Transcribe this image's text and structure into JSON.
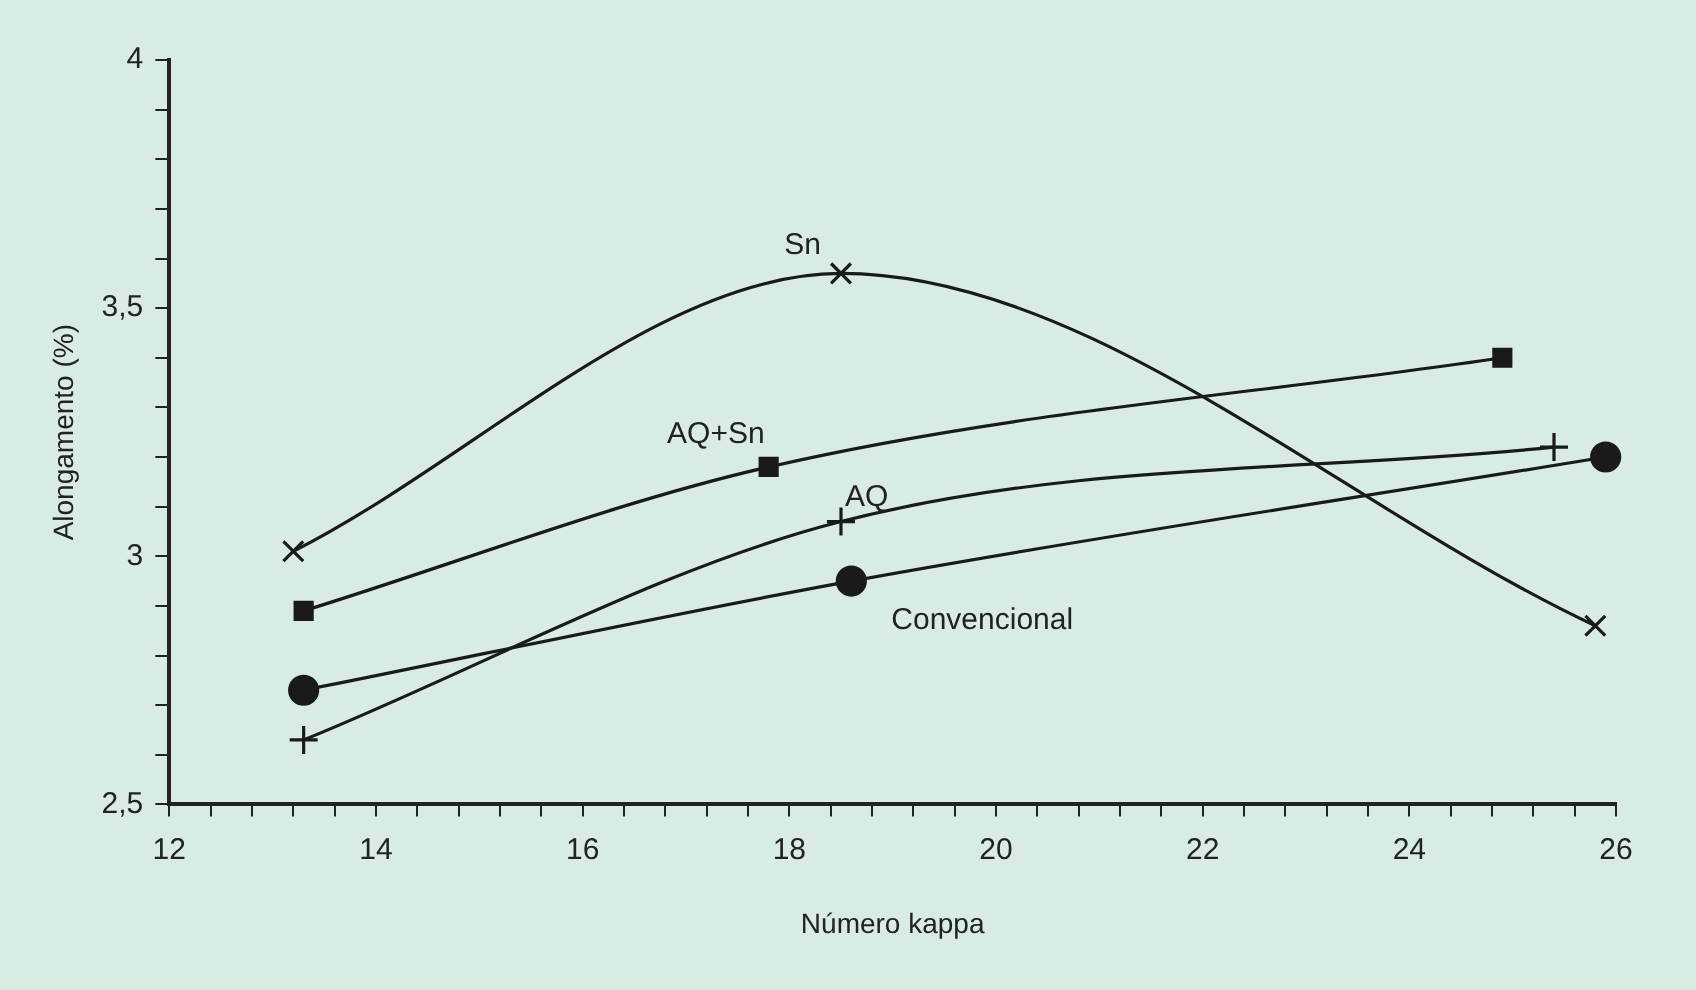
{
  "chart_data": {
    "type": "line",
    "xlabel": "Número kappa",
    "ylabel": "Alongamento (%)",
    "xlim": [
      12,
      26
    ],
    "xticks": [
      12,
      {
        "value": 12.4,
        "label": null
      },
      {
        "value": 12.8,
        "label": null
      },
      {
        "value": 13.2,
        "label": null
      },
      {
        "value": 13.6,
        "label": null
      },
      14,
      {
        "value": 14.4,
        "label": null
      },
      {
        "value": 14.8,
        "label": null
      },
      {
        "value": 15.2,
        "label": null
      },
      {
        "value": 15.6,
        "label": null
      },
      16,
      {
        "value": 16.4,
        "label": null
      },
      {
        "value": 16.8,
        "label": null
      },
      {
        "value": 17.2,
        "label": null
      },
      {
        "value": 17.6,
        "label": null
      },
      18,
      {
        "value": 18.4,
        "label": null
      },
      {
        "value": 18.8,
        "label": null
      },
      {
        "value": 19.2,
        "label": null
      },
      {
        "value": 19.6,
        "label": null
      },
      20,
      {
        "value": 20.4,
        "label": null
      },
      {
        "value": 20.8,
        "label": null
      },
      {
        "value": 21.2,
        "label": null
      },
      {
        "value": 21.6,
        "label": null
      },
      22,
      {
        "value": 22.4,
        "label": null
      },
      {
        "value": 22.8,
        "label": null
      },
      {
        "value": 23.2,
        "label": null
      },
      {
        "value": 23.6,
        "label": null
      },
      24,
      {
        "value": 24.4,
        "label": null
      },
      {
        "value": 24.8,
        "label": null
      },
      {
        "value": 25.2,
        "label": null
      },
      {
        "value": 25.6,
        "label": null
      },
      26
    ],
    "ylim": [
      2.5,
      4
    ],
    "yticks": [
      {
        "value": 2.5,
        "label": "2,5"
      },
      {
        "value": 2.6,
        "label": null
      },
      {
        "value": 2.7,
        "label": null
      },
      {
        "value": 2.8,
        "label": null
      },
      {
        "value": 2.9,
        "label": null
      },
      3,
      {
        "value": 3.1,
        "label": null
      },
      {
        "value": 3.2,
        "label": null
      },
      {
        "value": 3.3,
        "label": null
      },
      {
        "value": 3.4,
        "label": null
      },
      {
        "value": 3.5,
        "label": "3,5"
      },
      {
        "value": 3.6,
        "label": null
      },
      {
        "value": 3.7,
        "label": null
      },
      {
        "value": 3.8,
        "label": null
      },
      {
        "value": 3.9,
        "label": null
      },
      4
    ],
    "grid": false,
    "legend": false,
    "line_style": "solid",
    "series": [
      {
        "name": "Sn",
        "color": "#1a1a1a",
        "marker": "cross",
        "x": [
          13.2,
          18.5,
          25.8
        ],
        "values": [
          3.01,
          3.57,
          2.86
        ]
      },
      {
        "name": "AQ+Sn",
        "color": "#1a1a1a",
        "marker": "square",
        "x": [
          13.3,
          17.8,
          24.9
        ],
        "values": [
          2.89,
          3.18,
          3.4
        ]
      },
      {
        "name": "AQ",
        "color": "#1a1a1a",
        "marker": "plus",
        "x": [
          13.3,
          18.5,
          25.4
        ],
        "values": [
          2.63,
          3.07,
          3.22
        ]
      },
      {
        "name": "Convencional",
        "color": "#1a1a1a",
        "marker": "circle",
        "x": [
          13.3,
          18.6,
          25.9
        ],
        "values": [
          2.73,
          2.95,
          3.2
        ]
      }
    ]
  }
}
